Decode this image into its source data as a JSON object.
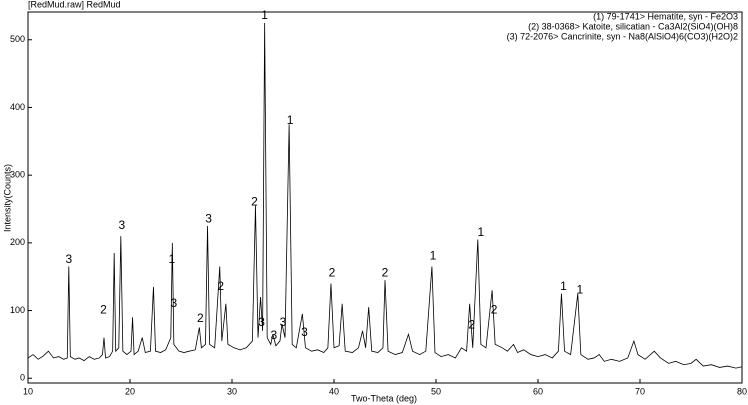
{
  "chart_data": {
    "type": "line",
    "title": "[RedMud.raw] RedMud",
    "phases": [
      "(1) 79-1741> Hematite, syn - Fe2O3",
      "(2) 38-0368> Katoite, silicatian - Ca3Al2(SiO4)(OH)8",
      "(3) 72-2076> Cancrinite, syn - Na8(AlSiO4)6(CO3)(H2O)2"
    ],
    "x_label": "Two-Theta (deg)",
    "y_label": "Intensity(Counts)",
    "xlim": [
      10,
      80
    ],
    "xticks": [
      10,
      20,
      30,
      40,
      50,
      60,
      70,
      80
    ],
    "ylim": [
      -7,
      541
    ],
    "yticks": [
      0,
      100,
      200,
      300,
      400,
      500
    ],
    "x": [
      10,
      10.5,
      11,
      11.5,
      12,
      12.5,
      13,
      13.5,
      13.85,
      14.0,
      14.15,
      14.6,
      15,
      15.5,
      16,
      16.5,
      17,
      17.3,
      17.45,
      17.6,
      18.0,
      18.3,
      18.45,
      18.6,
      18.9,
      19.1,
      19.3,
      19.7,
      20.1,
      20.25,
      20.4,
      20.8,
      21.2,
      21.5,
      22.0,
      22.3,
      22.5,
      23.0,
      23.5,
      24.0,
      24.15,
      24.3,
      24.8,
      25.3,
      25.8,
      26.4,
      26.8,
      27.0,
      27.4,
      27.6,
      27.8,
      28.3,
      28.8,
      29.0,
      29.4,
      29.6,
      30.2,
      30.8,
      31.4,
      32.0,
      32.3,
      32.55,
      32.8,
      33.0,
      33.2,
      33.45,
      33.8,
      34.0,
      34.3,
      34.7,
      34.9,
      35.2,
      35.6,
      35.9,
      36.3,
      36.9,
      37.2,
      37.8,
      38.4,
      39.0,
      39.4,
      39.7,
      40.0,
      40.5,
      40.8,
      41.1,
      41.8,
      42.4,
      42.8,
      43.1,
      43.4,
      43.7,
      44.3,
      44.8,
      45.0,
      45.3,
      46.0,
      46.7,
      47.3,
      47.7,
      48.4,
      49.0,
      49.6,
      49.9,
      50.5,
      51.2,
      51.9,
      52.5,
      53.0,
      53.3,
      53.6,
      54.1,
      54.4,
      54.9,
      55.5,
      55.8,
      56.5,
      57.0,
      57.6,
      58.0,
      58.6,
      59.3,
      60.0,
      60.7,
      61.4,
      62.0,
      62.3,
      62.6,
      63.2,
      63.9,
      64.2,
      64.9,
      65.5,
      66.0,
      66.5,
      67.2,
      68.0,
      68.8,
      69.4,
      69.8,
      70.5,
      71.4,
      72.0,
      72.8,
      73.5,
      74.3,
      75.0,
      75.5,
      76.2,
      77.0,
      77.8,
      78.6,
      79.4,
      80
    ],
    "series": [
      {
        "name": "RedMud",
        "color": "#000000",
        "values": [
          30,
          35,
          28,
          33,
          40,
          30,
          32,
          28,
          30,
          165,
          32,
          28,
          30,
          26,
          32,
          28,
          30,
          35,
          60,
          30,
          32,
          40,
          185,
          40,
          45,
          210,
          40,
          35,
          40,
          90,
          35,
          40,
          60,
          38,
          40,
          135,
          40,
          38,
          42,
          60,
          200,
          50,
          40,
          38,
          40,
          42,
          75,
          45,
          50,
          225,
          50,
          45,
          165,
          55,
          110,
          50,
          45,
          42,
          45,
          55,
          255,
          60,
          120,
          70,
          525,
          60,
          50,
          65,
          48,
          55,
          80,
          60,
          375,
          50,
          45,
          95,
          45,
          40,
          42,
          38,
          45,
          140,
          45,
          48,
          110,
          40,
          38,
          45,
          70,
          45,
          105,
          40,
          38,
          45,
          145,
          40,
          35,
          38,
          65,
          40,
          35,
          40,
          165,
          38,
          32,
          35,
          30,
          45,
          40,
          110,
          45,
          205,
          50,
          45,
          130,
          50,
          45,
          40,
          50,
          38,
          42,
          35,
          32,
          35,
          30,
          40,
          125,
          40,
          35,
          125,
          35,
          28,
          30,
          35,
          25,
          28,
          25,
          30,
          55,
          35,
          28,
          40,
          30,
          22,
          25,
          20,
          22,
          28,
          18,
          20,
          16,
          18,
          15,
          17
        ]
      }
    ],
    "annotations": [
      {
        "text": "3",
        "x": 14.0,
        "y": 175
      },
      {
        "text": "2",
        "x": 17.4,
        "y": 100
      },
      {
        "text": "3",
        "x": 19.2,
        "y": 225
      },
      {
        "text": "1",
        "x": 24.1,
        "y": 175
      },
      {
        "text": "3",
        "x": 24.3,
        "y": 110
      },
      {
        "text": "2",
        "x": 26.9,
        "y": 88
      },
      {
        "text": "3",
        "x": 27.7,
        "y": 235
      },
      {
        "text": "2",
        "x": 28.9,
        "y": 135
      },
      {
        "text": "2",
        "x": 32.2,
        "y": 260
      },
      {
        "text": "3",
        "x": 32.9,
        "y": 82
      },
      {
        "text": "1",
        "x": 33.2,
        "y": 535
      },
      {
        "text": "3",
        "x": 34.1,
        "y": 63
      },
      {
        "text": "3",
        "x": 35.0,
        "y": 82
      },
      {
        "text": "1",
        "x": 35.7,
        "y": 380
      },
      {
        "text": "3",
        "x": 37.1,
        "y": 67
      },
      {
        "text": "2",
        "x": 39.8,
        "y": 155
      },
      {
        "text": "2",
        "x": 45.0,
        "y": 155
      },
      {
        "text": "1",
        "x": 49.7,
        "y": 180
      },
      {
        "text": "2",
        "x": 53.5,
        "y": 78
      },
      {
        "text": "1",
        "x": 54.4,
        "y": 215
      },
      {
        "text": "2",
        "x": 55.7,
        "y": 100
      },
      {
        "text": "1",
        "x": 62.5,
        "y": 135
      },
      {
        "text": "1",
        "x": 64.1,
        "y": 130
      }
    ]
  }
}
